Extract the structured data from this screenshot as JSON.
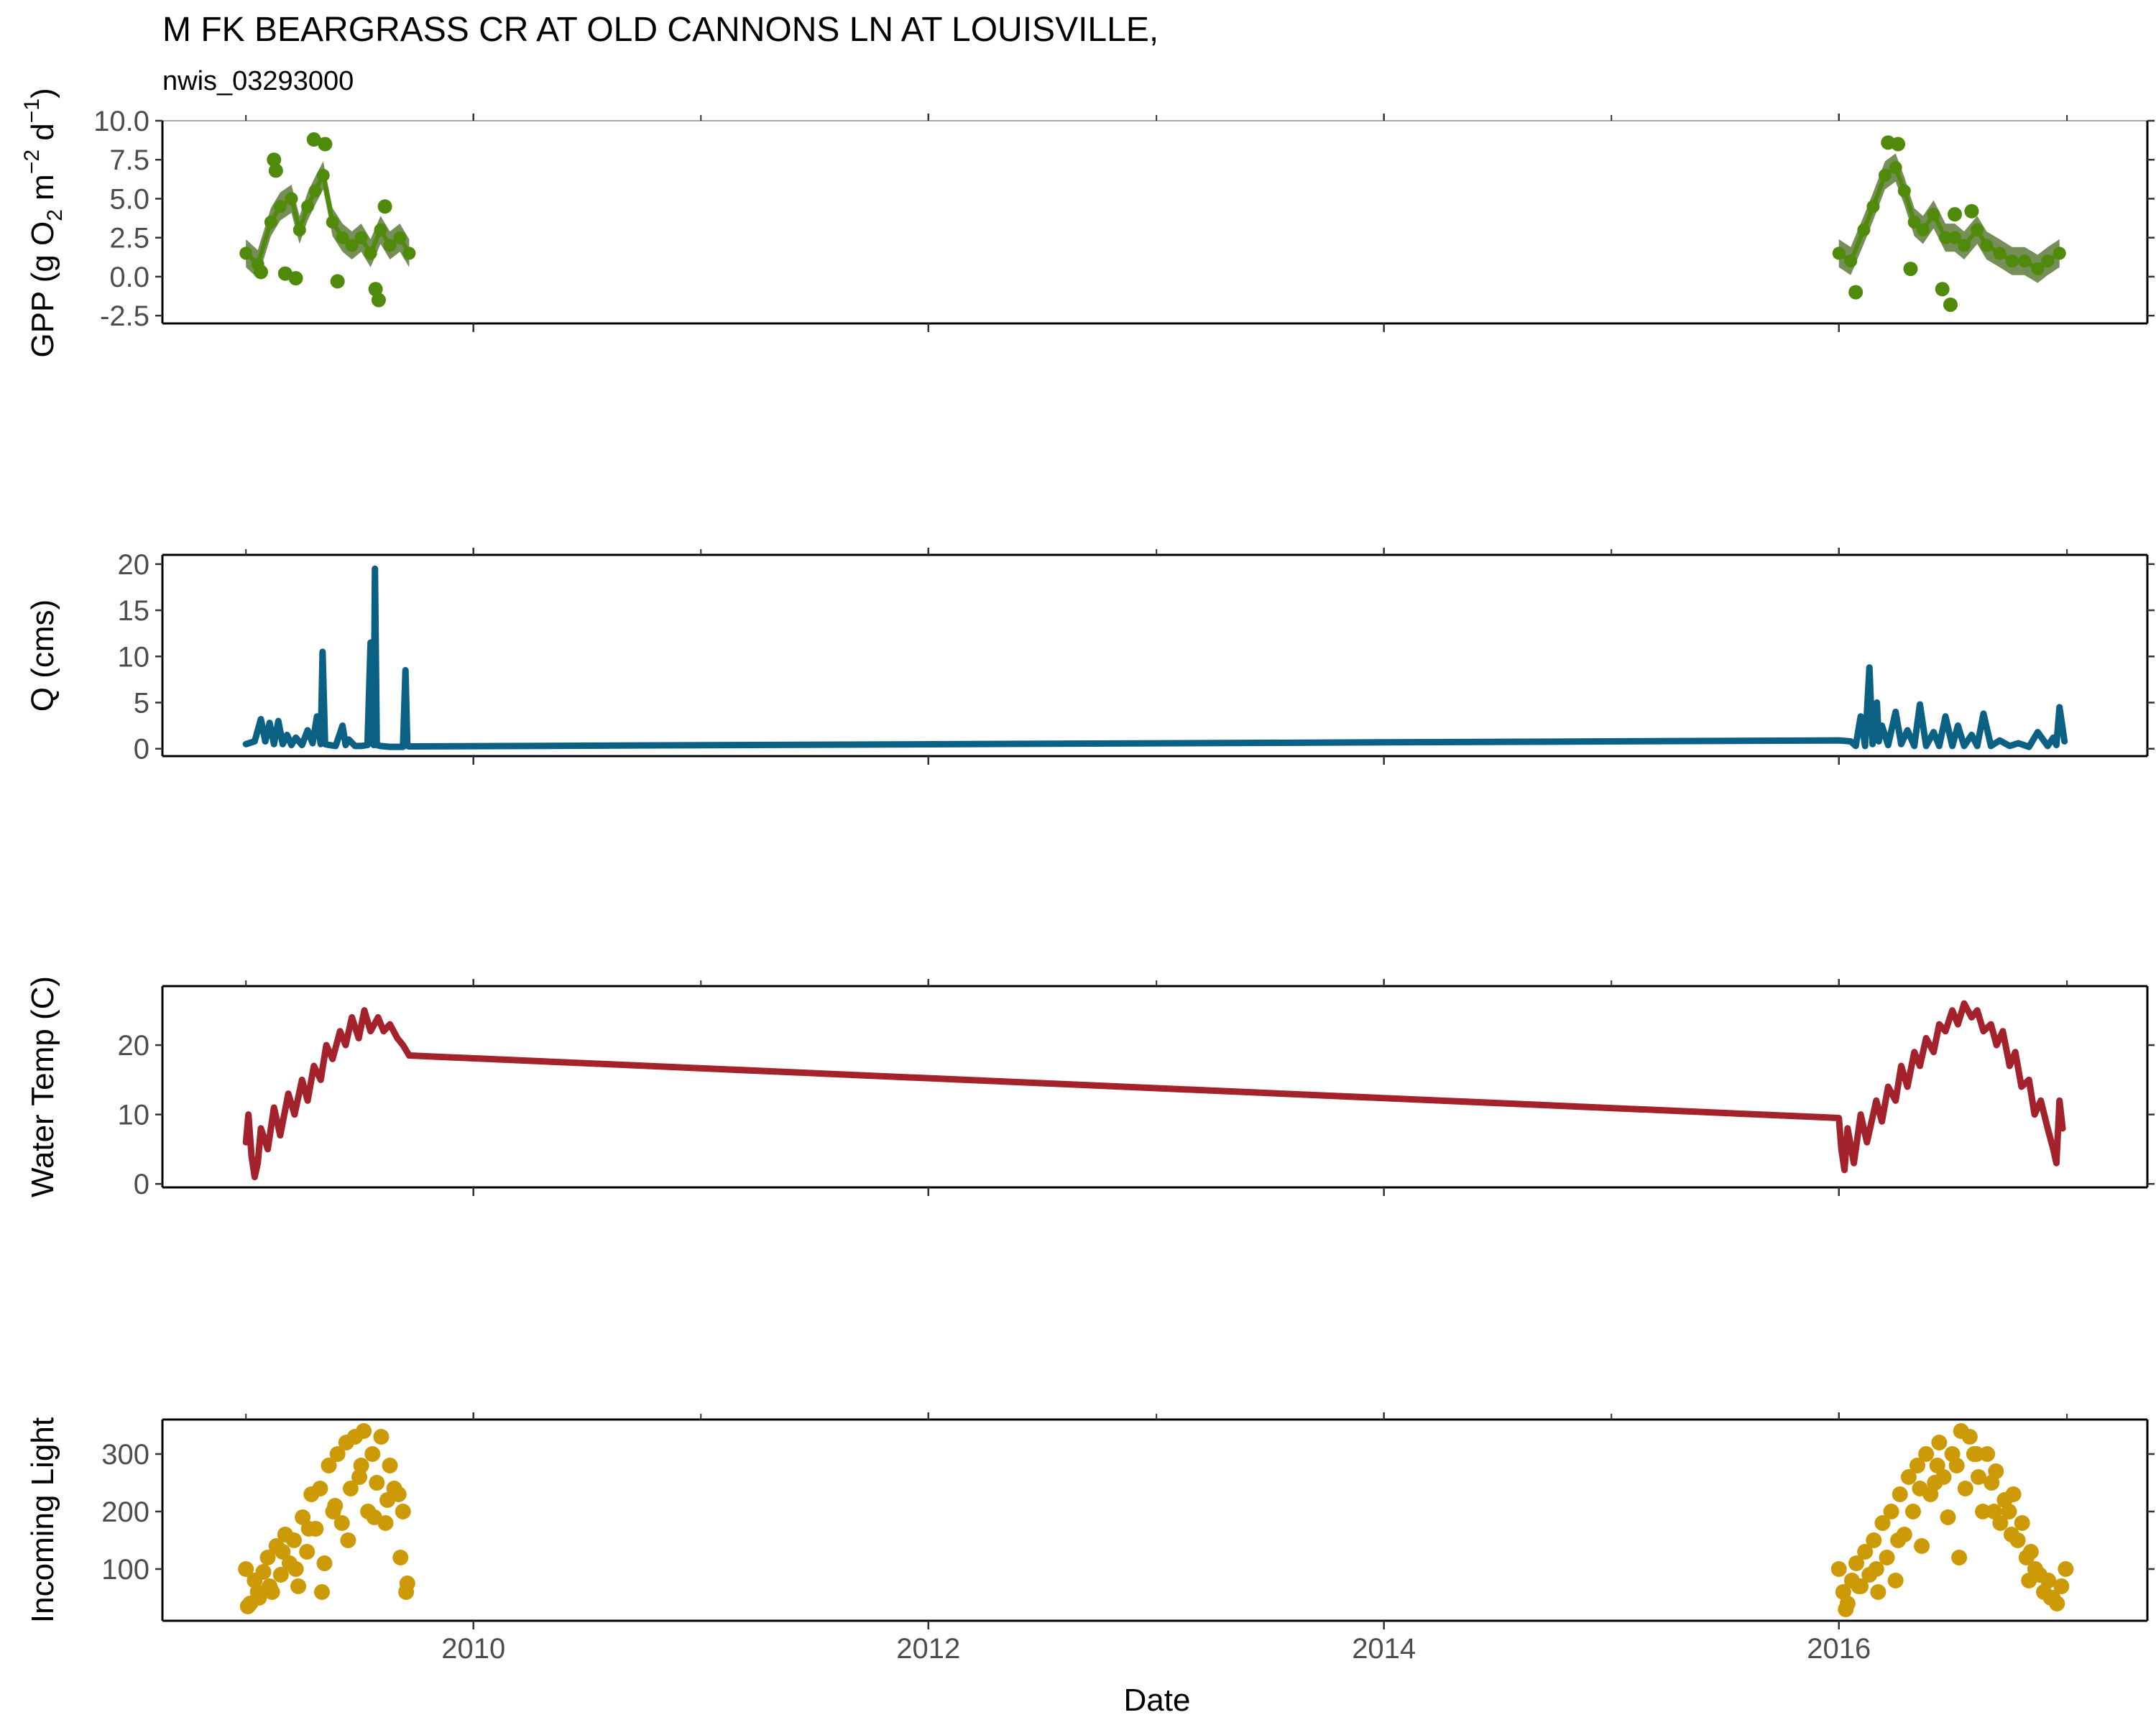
{
  "page": {
    "title": "M FK BEARGRASS CR AT OLD CANNONS LN AT LOUISVILLE,",
    "subtitle": "nwis_03293000"
  },
  "chart_data": [
    {
      "type": "line",
      "panel": "gpp",
      "ylabel": "GPP (g O2 m-2 d-1)",
      "ylim": [
        -3.0,
        10.0
      ],
      "yticks": [
        "10.0",
        "7.5",
        "5.0",
        "2.5",
        "0.0",
        "-2.5"
      ],
      "ytick_values": [
        10.0,
        7.5,
        5.0,
        2.5,
        0.0,
        -2.5
      ],
      "grid": false,
      "series": [
        {
          "color": "#4f8a0b",
          "ribbon_color": "#5e7a3a",
          "segments": [
            {
              "x": [
                "2009-01-01",
                "2009-01-20",
                "2009-02-10",
                "2009-02-25",
                "2009-03-15",
                "2009-03-28",
                "2009-04-10",
                "2009-04-22",
                "2009-05-05",
                "2009-05-20",
                "2009-06-05",
                "2009-06-20",
                "2009-07-05",
                "2009-07-20",
                "2009-08-05",
                "2009-08-20",
                "2009-09-05",
                "2009-09-20"
              ],
              "y": [
                1.5,
                0.8,
                3.5,
                4.5,
                5.0,
                3.0,
                4.5,
                5.5,
                6.5,
                3.5,
                2.5,
                2.0,
                2.5,
                1.5,
                3.0,
                2.0,
                2.5,
                1.5
              ]
            },
            {
              "x": [
                "2016-01-01",
                "2016-01-20",
                "2016-02-10",
                "2016-02-25",
                "2016-03-15",
                "2016-04-01",
                "2016-04-15",
                "2016-05-01",
                "2016-05-15",
                "2016-06-01",
                "2016-06-20",
                "2016-07-05",
                "2016-07-20",
                "2016-08-10",
                "2016-08-25",
                "2016-09-15",
                "2016-10-05",
                "2016-10-25",
                "2016-11-15",
                "2016-12-01",
                "2016-12-20"
              ],
              "y": [
                1.5,
                1.0,
                3.0,
                4.5,
                6.5,
                7.0,
                5.5,
                3.5,
                3.0,
                4.0,
                2.5,
                2.5,
                2.0,
                3.0,
                2.0,
                1.5,
                1.0,
                1.0,
                0.5,
                1.0,
                1.5
              ]
            }
          ],
          "outliers": {
            "x": [
              "2009-01-25",
              "2009-02-15",
              "2009-02-18",
              "2009-03-05",
              "2009-03-22",
              "2009-04-20",
              "2009-05-08",
              "2009-05-28",
              "2009-07-28",
              "2009-08-02",
              "2009-08-12",
              "2016-01-28",
              "2016-03-20",
              "2016-04-05",
              "2016-04-25",
              "2016-06-15",
              "2016-06-28",
              "2016-07-05",
              "2016-08-01"
            ],
            "y": [
              0.3,
              7.5,
              6.8,
              0.2,
              -0.1,
              8.8,
              8.5,
              -0.3,
              -0.8,
              -1.5,
              4.5,
              -1.0,
              8.6,
              8.5,
              0.5,
              -0.8,
              -1.8,
              4.0,
              4.2
            ]
          }
        }
      ]
    },
    {
      "type": "line",
      "panel": "discharge",
      "ylabel": "Q (cms)",
      "ylim": [
        -0.8,
        21
      ],
      "yticks": [
        "20",
        "15",
        "10",
        "5",
        "0"
      ],
      "ytick_values": [
        20,
        15,
        10,
        5,
        0
      ],
      "grid": false,
      "series": [
        {
          "color": "#0b6184",
          "x": [
            "2009-01-01",
            "2009-01-15",
            "2009-01-25",
            "2009-02-01",
            "2009-02-08",
            "2009-02-15",
            "2009-02-22",
            "2009-03-01",
            "2009-03-08",
            "2009-03-15",
            "2009-03-22",
            "2009-04-01",
            "2009-04-10",
            "2009-04-18",
            "2009-04-25",
            "2009-05-01",
            "2009-05-04",
            "2009-05-08",
            "2009-05-15",
            "2009-05-25",
            "2009-06-05",
            "2009-06-10",
            "2009-06-15",
            "2009-06-25",
            "2009-07-05",
            "2009-07-15",
            "2009-07-20",
            "2009-07-25",
            "2009-07-27",
            "2009-07-30",
            "2009-08-05",
            "2009-08-20",
            "2009-09-01",
            "2009-09-10",
            "2009-09-14",
            "2009-09-17",
            "2009-09-20",
            "2016-01-01",
            "2016-01-20",
            "2016-01-28",
            "2016-02-05",
            "2016-02-12",
            "2016-02-19",
            "2016-02-24",
            "2016-03-02",
            "2016-03-05",
            "2016-03-10",
            "2016-03-20",
            "2016-04-01",
            "2016-04-10",
            "2016-04-20",
            "2016-05-01",
            "2016-05-10",
            "2016-05-20",
            "2016-06-01",
            "2016-06-10",
            "2016-06-20",
            "2016-07-01",
            "2016-07-10",
            "2016-07-20",
            "2016-08-01",
            "2016-08-10",
            "2016-08-20",
            "2016-09-01",
            "2016-09-15",
            "2016-10-01",
            "2016-10-15",
            "2016-11-01",
            "2016-11-15",
            "2016-12-01",
            "2016-12-10",
            "2016-12-15",
            "2016-12-20",
            "2016-12-28"
          ],
          "y": [
            0.5,
            0.8,
            3.2,
            0.8,
            2.8,
            0.5,
            3.0,
            0.5,
            1.5,
            0.4,
            1.2,
            0.4,
            2.0,
            0.6,
            3.5,
            0.5,
            10.5,
            0.5,
            0.4,
            0.3,
            2.5,
            0.4,
            1.0,
            0.3,
            0.3,
            0.4,
            11.5,
            0.4,
            19.5,
            0.4,
            0.3,
            0.2,
            0.2,
            0.2,
            8.5,
            0.3,
            0.25,
            0.9,
            0.8,
            0.3,
            3.5,
            0.3,
            8.8,
            0.5,
            5.0,
            0.8,
            2.5,
            0.4,
            4.0,
            0.5,
            2.0,
            0.3,
            4.8,
            0.3,
            1.8,
            0.3,
            3.5,
            0.3,
            2.5,
            0.3,
            1.5,
            0.3,
            3.8,
            0.3,
            0.9,
            0.3,
            0.6,
            0.2,
            1.8,
            0.3,
            1.2,
            0.4,
            4.5,
            0.8
          ]
        }
      ]
    },
    {
      "type": "line",
      "panel": "water_temp",
      "ylabel": "Water Temp (C)",
      "ylim": [
        -0.5,
        28.5
      ],
      "yticks": [
        "20",
        "10",
        "0"
      ],
      "ytick_values": [
        20,
        10,
        0
      ],
      "grid": false,
      "series": [
        {
          "color": "#a3222b",
          "x": [
            "2009-01-01",
            "2009-01-05",
            "2009-01-10",
            "2009-01-15",
            "2009-01-20",
            "2009-01-25",
            "2009-02-05",
            "2009-02-15",
            "2009-02-25",
            "2009-03-10",
            "2009-03-20",
            "2009-04-01",
            "2009-04-10",
            "2009-04-20",
            "2009-05-01",
            "2009-05-10",
            "2009-05-20",
            "2009-06-01",
            "2009-06-10",
            "2009-06-20",
            "2009-07-01",
            "2009-07-10",
            "2009-07-20",
            "2009-08-01",
            "2009-08-10",
            "2009-08-20",
            "2009-09-01",
            "2009-09-10",
            "2009-09-20",
            "2016-01-01",
            "2016-01-05",
            "2016-01-10",
            "2016-01-15",
            "2016-01-25",
            "2016-02-05",
            "2016-02-15",
            "2016-03-01",
            "2016-03-10",
            "2016-03-20",
            "2016-04-01",
            "2016-04-10",
            "2016-04-20",
            "2016-05-01",
            "2016-05-10",
            "2016-05-20",
            "2016-06-01",
            "2016-06-10",
            "2016-06-20",
            "2016-07-01",
            "2016-07-10",
            "2016-07-20",
            "2016-08-01",
            "2016-08-10",
            "2016-08-20",
            "2016-09-01",
            "2016-09-10",
            "2016-09-20",
            "2016-10-01",
            "2016-10-10",
            "2016-10-20",
            "2016-11-01",
            "2016-11-10",
            "2016-11-20",
            "2016-12-01",
            "2016-12-10",
            "2016-12-15",
            "2016-12-20",
            "2016-12-25"
          ],
          "y": [
            6,
            10,
            4,
            1,
            3,
            8,
            5,
            11,
            7,
            13,
            10,
            15,
            12,
            17,
            15,
            20,
            18,
            22,
            20,
            24,
            21,
            25,
            22,
            24,
            22,
            23,
            21,
            20,
            18.5,
            9.5,
            5,
            2,
            8,
            3,
            10,
            6,
            12,
            9,
            14,
            12,
            17,
            14,
            19,
            17,
            21,
            19,
            23,
            22,
            25,
            23,
            26,
            24,
            25,
            22,
            23,
            20,
            22,
            17,
            19,
            14,
            15,
            10,
            12,
            8,
            5,
            3,
            12,
            8
          ]
        }
      ]
    },
    {
      "type": "scatter",
      "panel": "light",
      "xlabel": "Date",
      "ylabel": "Incoming Light",
      "ylim": [
        10,
        360
      ],
      "yticks": [
        "300",
        "200",
        "100"
      ],
      "ytick_values": [
        300,
        200,
        100
      ],
      "xlim": [
        "2008-08-20",
        "2017-05-10"
      ],
      "xticks": [
        "2010",
        "2012",
        "2014",
        "2016"
      ],
      "xtick_values": [
        "2010-01-01",
        "2012-01-01",
        "2014-01-01",
        "2016-01-01"
      ],
      "grid": false,
      "series": [
        {
          "color": "#cc9a06",
          "x": [
            "2009-01-01",
            "2009-01-08",
            "2009-01-15",
            "2009-01-22",
            "2009-01-29",
            "2009-02-05",
            "2009-02-12",
            "2009-02-19",
            "2009-02-26",
            "2009-03-05",
            "2009-03-12",
            "2009-03-19",
            "2009-03-26",
            "2009-04-02",
            "2009-04-09",
            "2009-04-16",
            "2009-04-23",
            "2009-04-30",
            "2009-05-07",
            "2009-05-14",
            "2009-05-21",
            "2009-05-28",
            "2009-06-04",
            "2009-06-11",
            "2009-06-18",
            "2009-06-25",
            "2009-07-02",
            "2009-07-09",
            "2009-07-16",
            "2009-07-23",
            "2009-07-30",
            "2009-08-06",
            "2009-08-13",
            "2009-08-20",
            "2009-08-27",
            "2009-09-03",
            "2009-09-10",
            "2009-09-17",
            "2009-01-04",
            "2009-01-20",
            "2009-02-08",
            "2009-03-01",
            "2009-03-22",
            "2009-04-12",
            "2009-05-03",
            "2009-05-24",
            "2009-06-14",
            "2009-07-05",
            "2009-07-26",
            "2009-08-16",
            "2009-09-06",
            "2009-09-15",
            "2016-01-01",
            "2016-01-08",
            "2016-01-15",
            "2016-01-22",
            "2016-01-29",
            "2016-02-05",
            "2016-02-12",
            "2016-02-19",
            "2016-02-26",
            "2016-03-04",
            "2016-03-11",
            "2016-03-18",
            "2016-03-25",
            "2016-04-01",
            "2016-04-08",
            "2016-04-15",
            "2016-04-22",
            "2016-04-29",
            "2016-05-06",
            "2016-05-13",
            "2016-05-20",
            "2016-05-27",
            "2016-06-03",
            "2016-06-10",
            "2016-06-17",
            "2016-06-24",
            "2016-07-01",
            "2016-07-08",
            "2016-07-15",
            "2016-07-22",
            "2016-07-29",
            "2016-08-05",
            "2016-08-12",
            "2016-08-19",
            "2016-08-26",
            "2016-09-02",
            "2016-09-09",
            "2016-09-16",
            "2016-09-23",
            "2016-09-30",
            "2016-10-07",
            "2016-10-14",
            "2016-10-21",
            "2016-10-28",
            "2016-11-04",
            "2016-11-11",
            "2016-11-18",
            "2016-11-25",
            "2016-12-02",
            "2016-12-09",
            "2016-12-16",
            "2016-12-23",
            "2016-12-30",
            "2016-01-12",
            "2016-02-02",
            "2016-03-01",
            "2016-04-05",
            "2016-05-10",
            "2016-06-07",
            "2016-07-12",
            "2016-08-09",
            "2016-09-06",
            "2016-10-04",
            "2016-11-01",
            "2016-12-06"
          ],
          "y": [
            100,
            40,
            80,
            50,
            95,
            120,
            60,
            140,
            90,
            160,
            110,
            150,
            70,
            190,
            130,
            230,
            170,
            240,
            110,
            280,
            200,
            300,
            180,
            320,
            240,
            330,
            260,
            340,
            200,
            300,
            250,
            330,
            180,
            280,
            240,
            230,
            200,
            75,
            35,
            60,
            70,
            130,
            100,
            170,
            60,
            210,
            150,
            280,
            190,
            220,
            120,
            60,
            100,
            60,
            40,
            80,
            110,
            70,
            130,
            90,
            150,
            60,
            180,
            120,
            200,
            80,
            230,
            160,
            260,
            200,
            280,
            140,
            300,
            230,
            250,
            320,
            260,
            190,
            300,
            280,
            340,
            240,
            330,
            300,
            260,
            200,
            300,
            250,
            270,
            180,
            220,
            200,
            230,
            150,
            180,
            120,
            130,
            100,
            90,
            60,
            80,
            50,
            40,
            70,
            100,
            30,
            70,
            100,
            150,
            240,
            280,
            120,
            300,
            200,
            160,
            80,
            50
          ]
        }
      ]
    }
  ]
}
